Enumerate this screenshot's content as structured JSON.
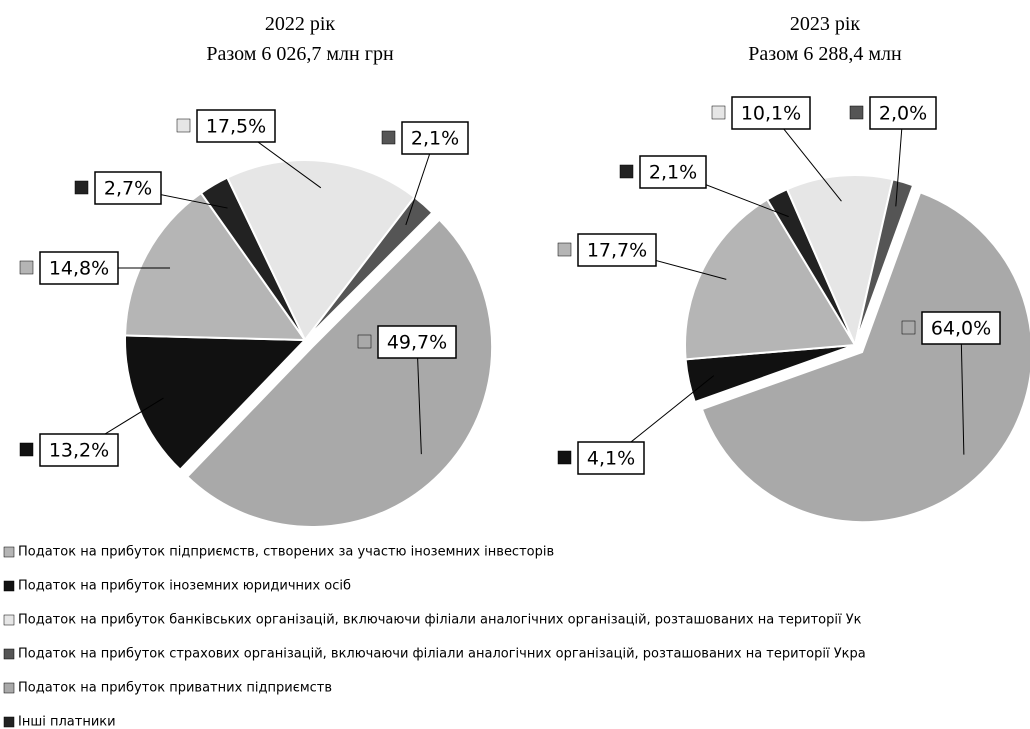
{
  "chart_data": [
    {
      "type": "pie",
      "title": "2022 рік",
      "subtitle": "Разом 6 026,7 млн грн",
      "values": [
        14.8,
        13.2,
        17.5,
        2.1,
        49.7,
        2.7
      ],
      "value_labels": [
        "14,8%",
        "13,2%",
        "17,5%",
        "2,1%",
        "49,7%",
        "2,7%"
      ]
    },
    {
      "type": "pie",
      "title": "2023 рік",
      "subtitle": "Разом  6 288,4 млн",
      "values": [
        17.7,
        4.1,
        10.1,
        2.0,
        64.0,
        2.1
      ],
      "value_labels": [
        "17,7%",
        "4,1%",
        "10,1%",
        "2,0%",
        "64,0%",
        "2,1%"
      ]
    }
  ],
  "legend": {
    "categories": [
      "Податок на прибуток підприємств, створених за участю іноземних інвесторів",
      "Податок на прибуток іноземних юридичних осіб",
      "Податок на прибуток банківських організацій, включаючи філіали аналогічних організацій, розташованих на території Ук",
      "Податок на прибуток страхових організацій, включаючи філіали аналогічних організацій, розташованих на території Укра",
      "Податок на прибуток приватних підприємств",
      "Інші платники"
    ],
    "colors": [
      "#b5b5b5",
      "#111111",
      "#e6e6e6",
      "#555555",
      "#a9a9a9",
      "#222222"
    ]
  }
}
